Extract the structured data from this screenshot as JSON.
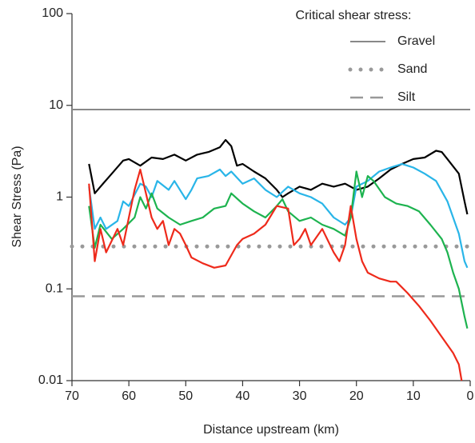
{
  "chart_data": {
    "type": "line",
    "log_y": true,
    "x_label": "Distance upstream (km)",
    "y_label": "Shear Stress (Pa)",
    "xlim": [
      70,
      0
    ],
    "xticks": [
      70,
      60,
      50,
      40,
      30,
      20,
      10,
      0
    ],
    "ylim": [
      0.01,
      100
    ],
    "yticks": [
      0.01,
      0.1,
      1,
      10,
      100
    ],
    "legend_title": "Critical shear stress:",
    "legend_position": "top-right",
    "reference_lines": [
      {
        "name": "Gravel",
        "value": 9,
        "color": "#888888",
        "style": "solid"
      },
      {
        "name": "Sand",
        "value": 0.29,
        "color": "#999999",
        "style": "dotted"
      },
      {
        "name": "Silt",
        "value": 0.083,
        "color": "#999999",
        "style": "dashed"
      }
    ],
    "series": [
      {
        "color": "#000000",
        "x": [
          67,
          66,
          65,
          63,
          61,
          60,
          58,
          56,
          54,
          52,
          50,
          48,
          46,
          44,
          43,
          42,
          41,
          40,
          38,
          36,
          34,
          33,
          32,
          30,
          28,
          26,
          24,
          22,
          20,
          18,
          16,
          14,
          12,
          10,
          8,
          6,
          5,
          4,
          2,
          1,
          0.5
        ],
        "values": [
          2.3,
          1.1,
          1.3,
          1.8,
          2.5,
          2.6,
          2.2,
          2.7,
          2.6,
          2.9,
          2.5,
          2.9,
          3.1,
          3.5,
          4.2,
          3.6,
          2.2,
          2.3,
          1.9,
          1.6,
          1.2,
          1.0,
          1.1,
          1.3,
          1.2,
          1.4,
          1.3,
          1.4,
          1.2,
          1.3,
          1.6,
          2.0,
          2.3,
          2.6,
          2.7,
          3.2,
          3.1,
          2.6,
          1.8,
          0.9,
          0.65
        ]
      },
      {
        "color": "#29b5e8",
        "x": [
          67,
          66,
          65,
          64,
          62,
          61,
          60,
          58,
          57,
          56,
          55,
          53,
          52,
          50,
          49,
          48,
          46,
          44,
          43,
          42,
          40,
          38,
          36,
          34,
          32,
          30,
          28,
          26,
          24,
          22,
          21,
          20,
          18,
          16,
          14,
          12,
          10,
          8,
          6,
          4,
          2,
          1,
          0.5
        ],
        "values": [
          1.3,
          0.45,
          0.6,
          0.45,
          0.55,
          0.9,
          0.8,
          1.4,
          1.3,
          1.0,
          1.5,
          1.2,
          1.5,
          0.95,
          1.2,
          1.6,
          1.7,
          2.0,
          1.7,
          1.9,
          1.4,
          1.6,
          1.2,
          1.0,
          1.3,
          1.1,
          1.0,
          0.85,
          0.6,
          0.5,
          0.6,
          1.3,
          1.5,
          1.9,
          2.1,
          2.3,
          2.1,
          1.8,
          1.5,
          0.9,
          0.4,
          0.2,
          0.17
        ]
      },
      {
        "color": "#1db34f",
        "x": [
          67,
          66,
          65,
          63,
          61,
          59,
          58,
          57,
          56,
          55,
          53,
          51,
          49,
          47,
          45,
          43,
          42,
          40,
          38,
          36,
          34,
          33,
          32,
          30,
          28,
          26,
          24,
          22,
          21,
          20,
          19,
          18,
          17,
          15,
          13,
          11,
          9,
          7,
          5,
          4,
          3,
          2,
          1,
          0.5
        ],
        "values": [
          0.8,
          0.28,
          0.5,
          0.35,
          0.45,
          0.6,
          1.0,
          0.75,
          1.1,
          0.75,
          0.6,
          0.5,
          0.55,
          0.6,
          0.75,
          0.8,
          1.1,
          0.85,
          0.7,
          0.6,
          0.8,
          0.95,
          0.7,
          0.55,
          0.6,
          0.5,
          0.45,
          0.38,
          0.6,
          1.9,
          1.0,
          1.7,
          1.5,
          1.0,
          0.85,
          0.8,
          0.7,
          0.5,
          0.35,
          0.25,
          0.15,
          0.1,
          0.05,
          0.037
        ]
      },
      {
        "color": "#ee2a1b",
        "x": [
          67,
          66,
          65,
          64,
          62,
          61,
          59,
          58,
          57,
          56,
          55,
          54,
          53,
          52,
          51,
          50,
          49,
          47,
          45,
          43,
          41,
          40,
          38,
          36,
          34,
          32,
          31,
          30,
          29,
          28,
          26,
          24,
          23,
          22,
          21,
          20,
          19,
          18,
          16,
          14,
          13,
          11,
          9,
          7,
          5,
          3,
          2,
          1.5
        ],
        "values": [
          1.4,
          0.2,
          0.45,
          0.25,
          0.45,
          0.3,
          1.2,
          2.0,
          1.1,
          0.6,
          0.45,
          0.55,
          0.3,
          0.45,
          0.4,
          0.3,
          0.22,
          0.19,
          0.17,
          0.18,
          0.3,
          0.35,
          0.4,
          0.5,
          0.8,
          0.75,
          0.3,
          0.35,
          0.45,
          0.3,
          0.45,
          0.25,
          0.2,
          0.3,
          0.8,
          0.35,
          0.2,
          0.15,
          0.13,
          0.12,
          0.12,
          0.09,
          0.065,
          0.045,
          0.03,
          0.02,
          0.015,
          0.01
        ]
      }
    ]
  }
}
